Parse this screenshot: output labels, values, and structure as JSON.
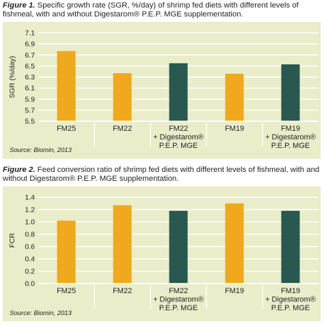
{
  "colors": {
    "panel_bg": "#e9edc9",
    "orange": "#f0a81c",
    "green": "#28584f",
    "grid": "#ffffff"
  },
  "figures": [
    {
      "caption_label": "Figure 1.",
      "caption_text": " Specific growth rate (SGR, %/day) of shrimp fed diets with different levels of fishmeal, with and without Digestarom® P.E.P. MGE supplementation.",
      "source_label": "Source: ",
      "source_text": "Biomin, 2013"
    },
    {
      "caption_label": "Figure 2.",
      "caption_text": " Feed conversion ratio of shrimp fed diets with different levels of fishmeal, with and without Digestarom® P.E.P. MGE supplementation.",
      "source_label": "Source: ",
      "source_text": "Biomin, 2013"
    }
  ],
  "chart_data": [
    {
      "type": "bar",
      "title": "Specific growth rate (SGR, %/day) of shrimp fed diets with different levels of fishmeal, with and without Digestarom® P.E.P. MGE supplementation.",
      "categories": [
        [
          "FM25"
        ],
        [
          "FM22"
        ],
        [
          "FM22",
          "+ Digestarom®",
          "P.E.P. MGE"
        ],
        [
          "FM19"
        ],
        [
          "FM19",
          "+ Digestarom®",
          "P.E.P. MGE"
        ]
      ],
      "values": [
        6.77,
        6.37,
        6.55,
        6.36,
        6.53
      ],
      "bar_colors": [
        "orange",
        "orange",
        "green",
        "orange",
        "green"
      ],
      "xlabel": "",
      "ylabel": "SGR (%/day)",
      "ylim": [
        5.5,
        7.1
      ],
      "yticks": [
        "5.5",
        "5.7",
        "5.9",
        "6.1",
        "6.3",
        "6.5",
        "6.7",
        "6.9",
        "7.1"
      ],
      "grid": true
    },
    {
      "type": "bar",
      "title": "Feed conversion ratio of shrimp fed diets with different levels of fishmeal, with and without Digestarom® P.E.P. MGE supplementation.",
      "categories": [
        [
          "FM25"
        ],
        [
          "FM22"
        ],
        [
          "FM22",
          "+ Digestarom®",
          "P.E.P. MGE"
        ],
        [
          "FM19"
        ],
        [
          "FM19",
          "+ Digestarom®",
          "P.E.P. MGE"
        ]
      ],
      "values": [
        1.02,
        1.27,
        1.18,
        1.3,
        1.18
      ],
      "bar_colors": [
        "orange",
        "orange",
        "green",
        "orange",
        "green"
      ],
      "xlabel": "",
      "ylabel": "FCR",
      "ylim": [
        0.0,
        1.4
      ],
      "yticks": [
        "0.0",
        "0.2",
        "0.4",
        "0.6",
        "0.8",
        "1.0",
        "1.2",
        "1.4"
      ],
      "grid": true
    }
  ]
}
